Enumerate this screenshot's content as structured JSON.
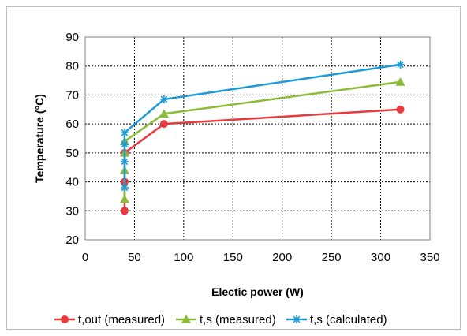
{
  "chart_data": {
    "type": "line",
    "title": "",
    "xlabel": "Electic power (W)",
    "ylabel": "Temperature (°C)",
    "xlim": [
      0,
      350
    ],
    "ylim": [
      20,
      90
    ],
    "xticks": [
      0,
      50,
      100,
      150,
      200,
      250,
      300,
      350
    ],
    "yticks": [
      20,
      30,
      40,
      50,
      60,
      70,
      80,
      90
    ],
    "grid": true,
    "legend_position": "bottom",
    "series": [
      {
        "name": "t,out (measured)",
        "color": "#e8393e",
        "marker": "circle",
        "x": [
          40,
          40,
          40,
          80,
          320
        ],
        "y": [
          30,
          40,
          50,
          60,
          65
        ]
      },
      {
        "name": "t,s (measured)",
        "color": "#8cbb3a",
        "marker": "triangle",
        "x": [
          40,
          40,
          40,
          40,
          80,
          320
        ],
        "y": [
          34,
          44,
          50,
          54,
          63.5,
          74.5
        ]
      },
      {
        "name": "t,s (calculated)",
        "color": "#1c9ad6",
        "marker": "star",
        "x": [
          40,
          40,
          40,
          40,
          80,
          320
        ],
        "y": [
          38,
          47,
          53,
          57,
          68.5,
          80.5
        ]
      }
    ]
  }
}
